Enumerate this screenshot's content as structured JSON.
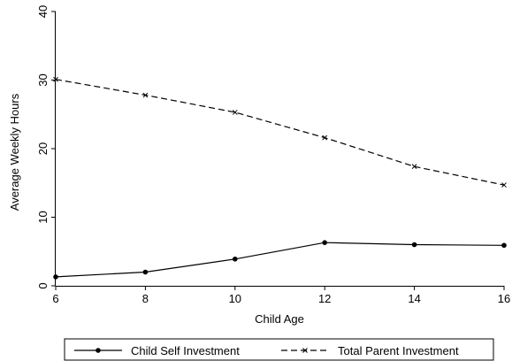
{
  "chart_data": {
    "type": "line",
    "xlabel": "Child Age",
    "ylabel": "Average Weekly Hours",
    "x": [
      6,
      8,
      10,
      12,
      14,
      16
    ],
    "xlim": [
      6,
      16
    ],
    "ylim": [
      0,
      40
    ],
    "xticks": [
      "6",
      "8",
      "10",
      "12",
      "14",
      "16"
    ],
    "yticks": [
      "0",
      "10",
      "20",
      "30",
      "40"
    ],
    "grid": false,
    "legend_position": "bottom",
    "series": [
      {
        "name": "Child Self Investment",
        "values": [
          1.3,
          2.0,
          3.9,
          6.3,
          6.0,
          5.9
        ],
        "style": "solid",
        "marker": "dot",
        "color": "#000000"
      },
      {
        "name": "Total Parent Investment",
        "values": [
          30.1,
          27.8,
          25.3,
          21.6,
          17.4,
          14.7
        ],
        "style": "dashed",
        "marker": "x",
        "color": "#000000"
      }
    ]
  }
}
